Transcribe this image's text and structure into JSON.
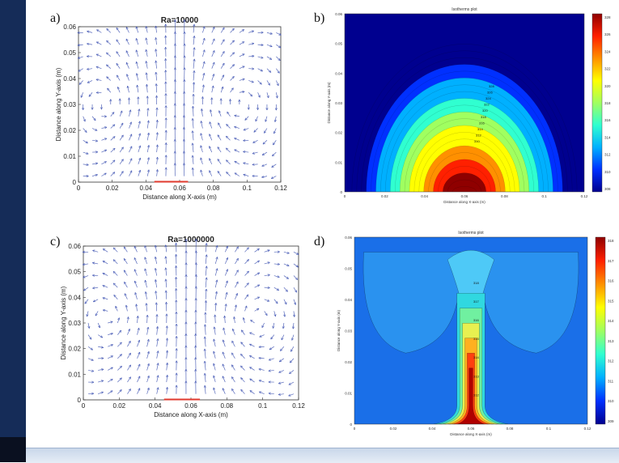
{
  "colors": {
    "sidebar": "#152c58",
    "arrow": "#3a4fb0",
    "heater": "#e03a2e",
    "colormap": [
      "#00008f",
      "#0030ff",
      "#00b0ff",
      "#30ffd0",
      "#a0ff60",
      "#ffff00",
      "#ff9000",
      "#ff2000",
      "#8f0000"
    ]
  },
  "panels": [
    {
      "letter": "a)"
    },
    {
      "letter": "b)"
    },
    {
      "letter": "c)"
    },
    {
      "letter": "d)"
    }
  ],
  "chart_data": [
    {
      "type": "quiver",
      "title": "Ra=10000",
      "xlabel": "Distance along X-axis (m)",
      "ylabel": "Distance along Y-axis (m)",
      "xlim": [
        0,
        0.12
      ],
      "ylim": [
        0,
        0.06
      ],
      "xticks": [
        "0",
        "0.02",
        "0.04",
        "0.06",
        "0.08",
        "0.1",
        "0.12"
      ],
      "yticks": [
        "0",
        "0.01",
        "0.02",
        "0.03",
        "0.04",
        "0.05",
        "0.06"
      ],
      "heater_x": [
        0.045,
        0.065
      ],
      "rolls": [
        {
          "cx": 0.033,
          "cy": 0.03,
          "sense": "ccw"
        },
        {
          "cx": 0.077,
          "cy": 0.03,
          "sense": "cw"
        }
      ]
    },
    {
      "type": "heatmap",
      "title": "Isotherms plot",
      "xlabel": "Distance along X-axis (m)",
      "ylabel": "Distance along Y-axis (m)",
      "xticks": [
        "0",
        "0.02",
        "0.04",
        "0.06",
        "0.08",
        "0.1",
        "0.12"
      ],
      "yticks": [
        "0",
        "0.01",
        "0.02",
        "0.03",
        "0.04",
        "0.05",
        "0.06"
      ],
      "colorbar_ticks": [
        "328",
        "326",
        "324",
        "322",
        "320",
        "318",
        "316",
        "314",
        "312",
        "310",
        "308"
      ],
      "plume": "broad dome"
    },
    {
      "type": "quiver",
      "title": "Ra=1000000",
      "xlabel": "Distance along X-axis (m)",
      "ylabel": "Distance along Y-axis (m)",
      "xlim": [
        0,
        0.12
      ],
      "ylim": [
        0,
        0.06
      ],
      "xticks": [
        "0",
        "0.02",
        "0.04",
        "0.06",
        "0.08",
        "0.1",
        "0.12"
      ],
      "yticks": [
        "0",
        "0.01",
        "0.02",
        "0.03",
        "0.04",
        "0.05",
        "0.06"
      ],
      "heater_x": [
        0.045,
        0.065
      ],
      "rolls": [
        {
          "cx": 0.03,
          "cy": 0.032,
          "sense": "ccw"
        },
        {
          "cx": 0.08,
          "cy": 0.032,
          "sense": "cw"
        }
      ]
    },
    {
      "type": "heatmap",
      "title": "Isotherms plot",
      "xlabel": "Distance along X-axis (m)",
      "ylabel": "Distance along Y-axis (m)",
      "xticks": [
        "0",
        "0.02",
        "0.04",
        "0.06",
        "0.08",
        "0.1",
        "0.12"
      ],
      "yticks": [
        "0",
        "0.01",
        "0.02",
        "0.03",
        "0.04",
        "0.05",
        "0.06"
      ],
      "colorbar_ticks": [
        "318",
        "317",
        "316",
        "315",
        "314",
        "313",
        "312",
        "311",
        "310",
        "309"
      ],
      "plume": "narrow mushroom"
    }
  ]
}
